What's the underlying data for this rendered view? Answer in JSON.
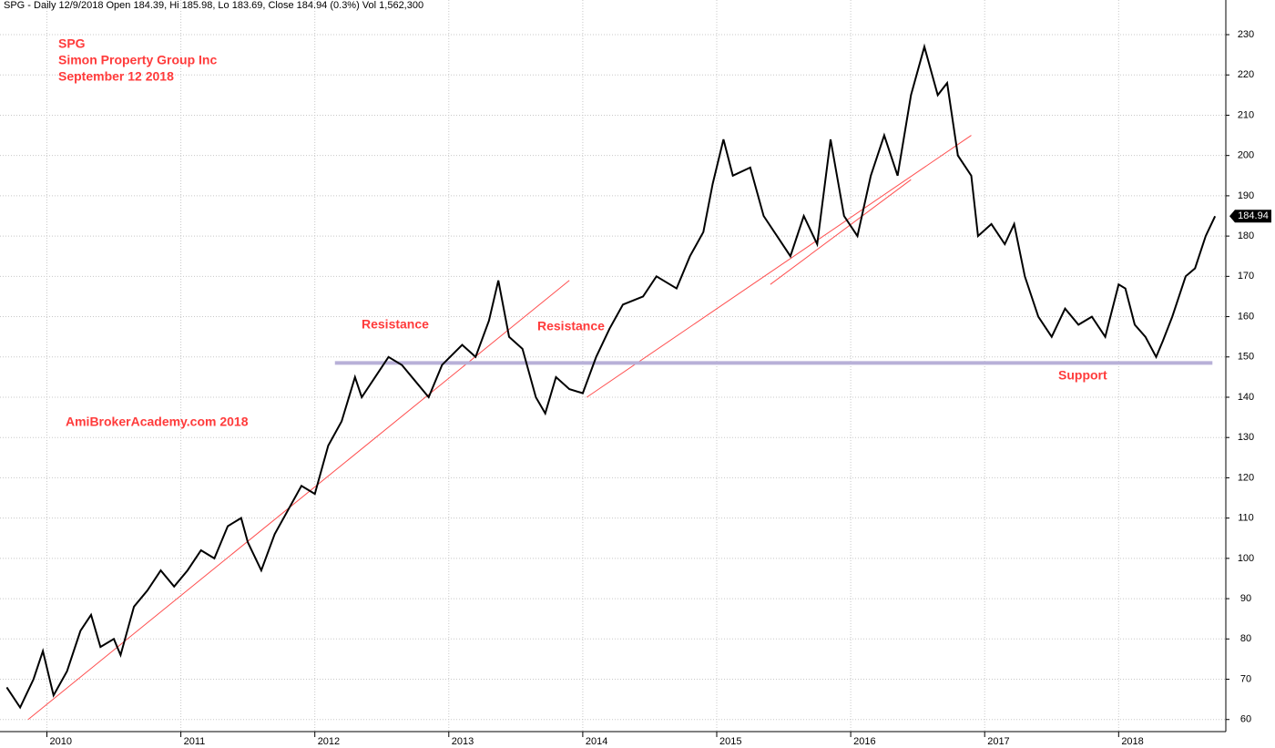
{
  "chart_data": {
    "type": "line",
    "header": "SPG - Daily 12/9/2018 Open 184.39, Hi 185.98, Lo 183.69, Close 184.94 (0.3%) Vol 1,562,300",
    "title_lines": [
      "SPG",
      "Simon Property Group Inc",
      "September 12 2018"
    ],
    "annotations": [
      "Resistance",
      "Resistance",
      "Support",
      "AmiBrokerAcademy.com  2018"
    ],
    "x": [
      2009.7,
      2009.8,
      2009.9,
      2009.97,
      2010.05,
      2010.15,
      2010.25,
      2010.33,
      2010.4,
      2010.5,
      2010.55,
      2010.65,
      2010.75,
      2010.85,
      2010.95,
      2011.05,
      2011.15,
      2011.25,
      2011.35,
      2011.45,
      2011.5,
      2011.6,
      2011.7,
      2011.8,
      2011.9,
      2012.0,
      2012.1,
      2012.2,
      2012.3,
      2012.35,
      2012.45,
      2012.55,
      2012.65,
      2012.75,
      2012.85,
      2012.95,
      2013.1,
      2013.2,
      2013.3,
      2013.37,
      2013.45,
      2013.55,
      2013.65,
      2013.72,
      2013.8,
      2013.9,
      2014.0,
      2014.1,
      2014.2,
      2014.3,
      2014.45,
      2014.55,
      2014.7,
      2014.8,
      2014.9,
      2014.97,
      2015.05,
      2015.12,
      2015.25,
      2015.35,
      2015.45,
      2015.55,
      2015.65,
      2015.75,
      2015.85,
      2015.95,
      2016.05,
      2016.15,
      2016.25,
      2016.35,
      2016.45,
      2016.55,
      2016.65,
      2016.72,
      2016.8,
      2016.9,
      2016.95,
      2017.05,
      2017.15,
      2017.22,
      2017.3,
      2017.4,
      2017.5,
      2017.6,
      2017.7,
      2017.8,
      2017.9,
      2018.0,
      2018.05,
      2018.12,
      2018.2,
      2018.28,
      2018.33,
      2018.4,
      2018.5,
      2018.57,
      2018.65,
      2018.72
    ],
    "series": [
      {
        "name": "SPG",
        "color": "#000000",
        "values": [
          68,
          63,
          70,
          77,
          66,
          72,
          82,
          86,
          78,
          80,
          76,
          88,
          92,
          97,
          93,
          97,
          102,
          100,
          108,
          110,
          104,
          97,
          106,
          112,
          118,
          116,
          128,
          134,
          145,
          140,
          145,
          150,
          148,
          144,
          140,
          148,
          153,
          150,
          159,
          169,
          155,
          152,
          140,
          136,
          145,
          142,
          141,
          150,
          157,
          163,
          165,
          170,
          167,
          175,
          181,
          193,
          204,
          195,
          197,
          185,
          180,
          175,
          185,
          178,
          204,
          185,
          180,
          195,
          205,
          195,
          215,
          227,
          215,
          218,
          200,
          195,
          180,
          183,
          178,
          183,
          170,
          160,
          155,
          162,
          158,
          160,
          155,
          168,
          167,
          158,
          155,
          150,
          154,
          160,
          170,
          172,
          180,
          184.94
        ]
      }
    ],
    "trend_lines": [
      {
        "color": "#ff5050",
        "x": [
          2009.86,
          2013.9
        ],
        "y": [
          60,
          169
        ]
      },
      {
        "color": "#ff5050",
        "x": [
          2014.03,
          2016.9
        ],
        "y": [
          140,
          205
        ]
      },
      {
        "color": "#ff5050",
        "x": [
          2015.4,
          2016.45
        ],
        "y": [
          168,
          194
        ]
      },
      {
        "color": "#b8b0d8",
        "x": [
          2012.15,
          2018.7
        ],
        "y": [
          148.5,
          148.5
        ]
      }
    ],
    "xlim": [
      2009.65,
      2018.8
    ],
    "xticks": [
      2010,
      2011,
      2012,
      2013,
      2014,
      2015,
      2016,
      2017,
      2018
    ],
    "ylim": [
      57,
      238.6
    ],
    "yticks": [
      60,
      70,
      80,
      90,
      100,
      110,
      120,
      130,
      140,
      150,
      160,
      170,
      180,
      190,
      200,
      210,
      220,
      230
    ],
    "grid": true
  }
}
